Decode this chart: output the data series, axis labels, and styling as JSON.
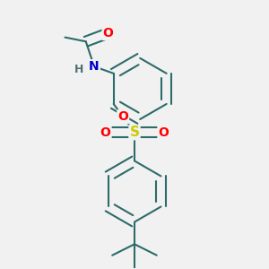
{
  "background_color": "#f1f1f1",
  "bond_color": "#2d6b6b",
  "bond_width": 1.5,
  "colors": {
    "N": "#0000cc",
    "O": "#ff0000",
    "S": "#cccc00",
    "C": "#2d6b6b",
    "H": "#507070"
  }
}
